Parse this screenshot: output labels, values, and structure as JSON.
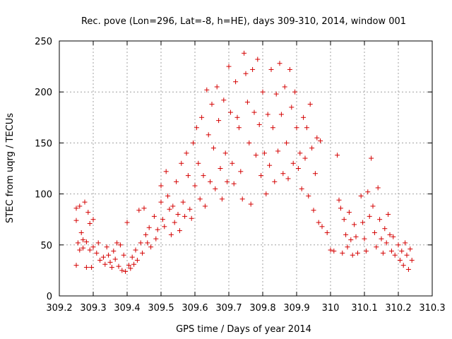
{
  "chart_data": {
    "type": "scatter",
    "title": "Rec. pove (Lon=296, Lat=-8, h=HE), days 309-310, 2014, window 001",
    "xlabel": "GPS time / Days of year 2014",
    "ylabel": "STEC from uqrg / TECUs",
    "xlim": [
      309.2,
      310.3
    ],
    "ylim": [
      0,
      250
    ],
    "xticks": [
      "309.2",
      "309.3",
      "309.4",
      "309.5",
      "309.6",
      "309.7",
      "309.8",
      "309.9",
      "310",
      "310.1",
      "310.2",
      "310.3"
    ],
    "yticks": [
      "0",
      "50",
      "100",
      "150",
      "200",
      "250"
    ],
    "grid": true,
    "marker": "+",
    "color": "#d40000",
    "points": [
      [
        309.25,
        86
      ],
      [
        309.25,
        74
      ],
      [
        309.255,
        52
      ],
      [
        309.26,
        45
      ],
      [
        309.25,
        30
      ],
      [
        309.26,
        88
      ],
      [
        309.265,
        62
      ],
      [
        309.27,
        55
      ],
      [
        309.275,
        92
      ],
      [
        309.27,
        47
      ],
      [
        309.28,
        53
      ],
      [
        309.28,
        28
      ],
      [
        309.285,
        82
      ],
      [
        309.29,
        71
      ],
      [
        309.29,
        45
      ],
      [
        309.295,
        28
      ],
      [
        309.3,
        75
      ],
      [
        309.3,
        48
      ],
      [
        309.31,
        42
      ],
      [
        309.315,
        52
      ],
      [
        309.32,
        35
      ],
      [
        309.33,
        38
      ],
      [
        309.335,
        31
      ],
      [
        309.34,
        48
      ],
      [
        309.345,
        40
      ],
      [
        309.35,
        33
      ],
      [
        309.355,
        28
      ],
      [
        309.36,
        44
      ],
      [
        309.365,
        36
      ],
      [
        309.37,
        52
      ],
      [
        309.375,
        29
      ],
      [
        309.38,
        50
      ],
      [
        309.385,
        25
      ],
      [
        309.39,
        40
      ],
      [
        309.395,
        24
      ],
      [
        309.4,
        72
      ],
      [
        309.405,
        30
      ],
      [
        309.41,
        27
      ],
      [
        309.415,
        38
      ],
      [
        309.42,
        31
      ],
      [
        309.425,
        45
      ],
      [
        309.43,
        35
      ],
      [
        309.435,
        84
      ],
      [
        309.44,
        52
      ],
      [
        309.445,
        42
      ],
      [
        309.45,
        86
      ],
      [
        309.455,
        60
      ],
      [
        309.46,
        52
      ],
      [
        309.465,
        67
      ],
      [
        309.47,
        48
      ],
      [
        309.48,
        78
      ],
      [
        309.485,
        56
      ],
      [
        309.49,
        65
      ],
      [
        309.5,
        108
      ],
      [
        309.5,
        92
      ],
      [
        309.505,
        75
      ],
      [
        309.51,
        68
      ],
      [
        309.515,
        122
      ],
      [
        309.52,
        98
      ],
      [
        309.525,
        85
      ],
      [
        309.53,
        60
      ],
      [
        309.535,
        88
      ],
      [
        309.54,
        72
      ],
      [
        309.545,
        112
      ],
      [
        309.55,
        80
      ],
      [
        309.555,
        64
      ],
      [
        309.56,
        130
      ],
      [
        309.565,
        92
      ],
      [
        309.57,
        78
      ],
      [
        309.575,
        140
      ],
      [
        309.58,
        118
      ],
      [
        309.585,
        85
      ],
      [
        309.59,
        76
      ],
      [
        309.595,
        150
      ],
      [
        309.6,
        108
      ],
      [
        309.605,
        165
      ],
      [
        309.61,
        130
      ],
      [
        309.615,
        95
      ],
      [
        309.62,
        175
      ],
      [
        309.625,
        118
      ],
      [
        309.63,
        88
      ],
      [
        309.635,
        202
      ],
      [
        309.64,
        158
      ],
      [
        309.645,
        112
      ],
      [
        309.65,
        188
      ],
      [
        309.655,
        145
      ],
      [
        309.66,
        105
      ],
      [
        309.665,
        205
      ],
      [
        309.67,
        172
      ],
      [
        309.675,
        125
      ],
      [
        309.68,
        95
      ],
      [
        309.685,
        192
      ],
      [
        309.69,
        140
      ],
      [
        309.695,
        112
      ],
      [
        309.7,
        225
      ],
      [
        309.705,
        180
      ],
      [
        309.71,
        130
      ],
      [
        309.715,
        110
      ],
      [
        309.72,
        210
      ],
      [
        309.725,
        175
      ],
      [
        309.73,
        165
      ],
      [
        309.735,
        122
      ],
      [
        309.74,
        95
      ],
      [
        309.745,
        238
      ],
      [
        309.75,
        218
      ],
      [
        309.755,
        190
      ],
      [
        309.76,
        150
      ],
      [
        309.765,
        90
      ],
      [
        309.77,
        222
      ],
      [
        309.775,
        180
      ],
      [
        309.78,
        138
      ],
      [
        309.785,
        232
      ],
      [
        309.79,
        168
      ],
      [
        309.795,
        118
      ],
      [
        309.8,
        200
      ],
      [
        309.805,
        140
      ],
      [
        309.81,
        100
      ],
      [
        309.815,
        178
      ],
      [
        309.82,
        128
      ],
      [
        309.825,
        222
      ],
      [
        309.83,
        165
      ],
      [
        309.835,
        112
      ],
      [
        309.84,
        198
      ],
      [
        309.845,
        142
      ],
      [
        309.85,
        228
      ],
      [
        309.855,
        178
      ],
      [
        309.86,
        120
      ],
      [
        309.865,
        205
      ],
      [
        309.87,
        150
      ],
      [
        309.875,
        115
      ],
      [
        309.88,
        222
      ],
      [
        309.885,
        185
      ],
      [
        309.89,
        130
      ],
      [
        309.895,
        200
      ],
      [
        309.9,
        165
      ],
      [
        309.905,
        125
      ],
      [
        309.91,
        140
      ],
      [
        309.915,
        105
      ],
      [
        309.92,
        175
      ],
      [
        309.925,
        135
      ],
      [
        309.93,
        165
      ],
      [
        309.935,
        98
      ],
      [
        309.94,
        188
      ],
      [
        309.945,
        145
      ],
      [
        309.95,
        84
      ],
      [
        309.955,
        120
      ],
      [
        309.96,
        155
      ],
      [
        309.965,
        72
      ],
      [
        309.97,
        152
      ],
      [
        309.975,
        68
      ],
      [
        309.99,
        62
      ],
      [
        310.0,
        45
      ],
      [
        310.01,
        44
      ],
      [
        310.02,
        138
      ],
      [
        310.025,
        94
      ],
      [
        310.03,
        86
      ],
      [
        310.035,
        42
      ],
      [
        310.04,
        75
      ],
      [
        310.045,
        60
      ],
      [
        310.05,
        48
      ],
      [
        310.055,
        82
      ],
      [
        310.06,
        55
      ],
      [
        310.065,
        40
      ],
      [
        310.07,
        70
      ],
      [
        310.075,
        58
      ],
      [
        310.08,
        42
      ],
      [
        310.09,
        98
      ],
      [
        310.095,
        72
      ],
      [
        310.1,
        56
      ],
      [
        310.105,
        44
      ],
      [
        310.11,
        102
      ],
      [
        310.115,
        78
      ],
      [
        310.12,
        135
      ],
      [
        310.125,
        88
      ],
      [
        310.13,
        62
      ],
      [
        310.135,
        48
      ],
      [
        310.14,
        106
      ],
      [
        310.145,
        75
      ],
      [
        310.15,
        56
      ],
      [
        310.155,
        42
      ],
      [
        310.16,
        66
      ],
      [
        310.165,
        52
      ],
      [
        310.17,
        80
      ],
      [
        310.175,
        60
      ],
      [
        310.18,
        44
      ],
      [
        310.185,
        58
      ],
      [
        310.19,
        40
      ],
      [
        310.2,
        50
      ],
      [
        310.205,
        35
      ],
      [
        310.21,
        44
      ],
      [
        310.215,
        30
      ],
      [
        310.22,
        52
      ],
      [
        310.225,
        40
      ],
      [
        310.23,
        26
      ],
      [
        310.235,
        46
      ],
      [
        310.24,
        35
      ]
    ]
  }
}
